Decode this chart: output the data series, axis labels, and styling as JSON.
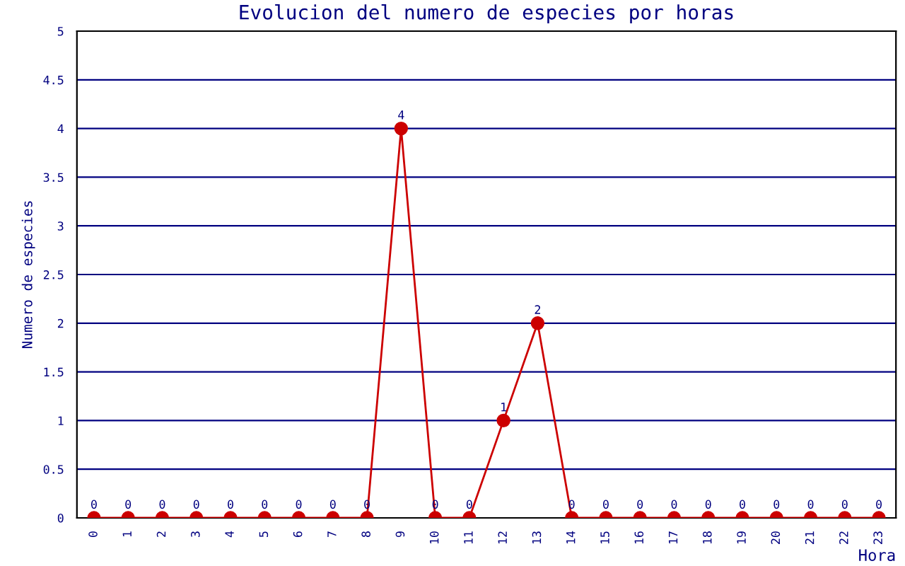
{
  "chart_data": {
    "type": "line",
    "title": "Evolucion del numero de especies por horas",
    "xlabel": "Hora",
    "ylabel": "Numero de especies",
    "categories": [
      "0",
      "1",
      "2",
      "3",
      "4",
      "5",
      "6",
      "7",
      "8",
      "9",
      "10",
      "11",
      "12",
      "13",
      "14",
      "15",
      "16",
      "17",
      "18",
      "19",
      "20",
      "21",
      "22",
      "23"
    ],
    "series": [
      {
        "color": "#cc0000",
        "values": [
          0,
          0,
          0,
          0,
          0,
          0,
          0,
          0,
          0,
          4,
          0,
          0,
          1,
          2,
          0,
          0,
          0,
          0,
          0,
          0,
          0,
          0,
          0,
          0
        ]
      }
    ],
    "ylim": [
      0,
      5
    ],
    "yticks": [
      0,
      0.5,
      1,
      1.5,
      2,
      2.5,
      3,
      3.5,
      4,
      4.5,
      5
    ],
    "grid": "y",
    "marker": "circle",
    "line_style": "solid",
    "data_labels": true
  }
}
